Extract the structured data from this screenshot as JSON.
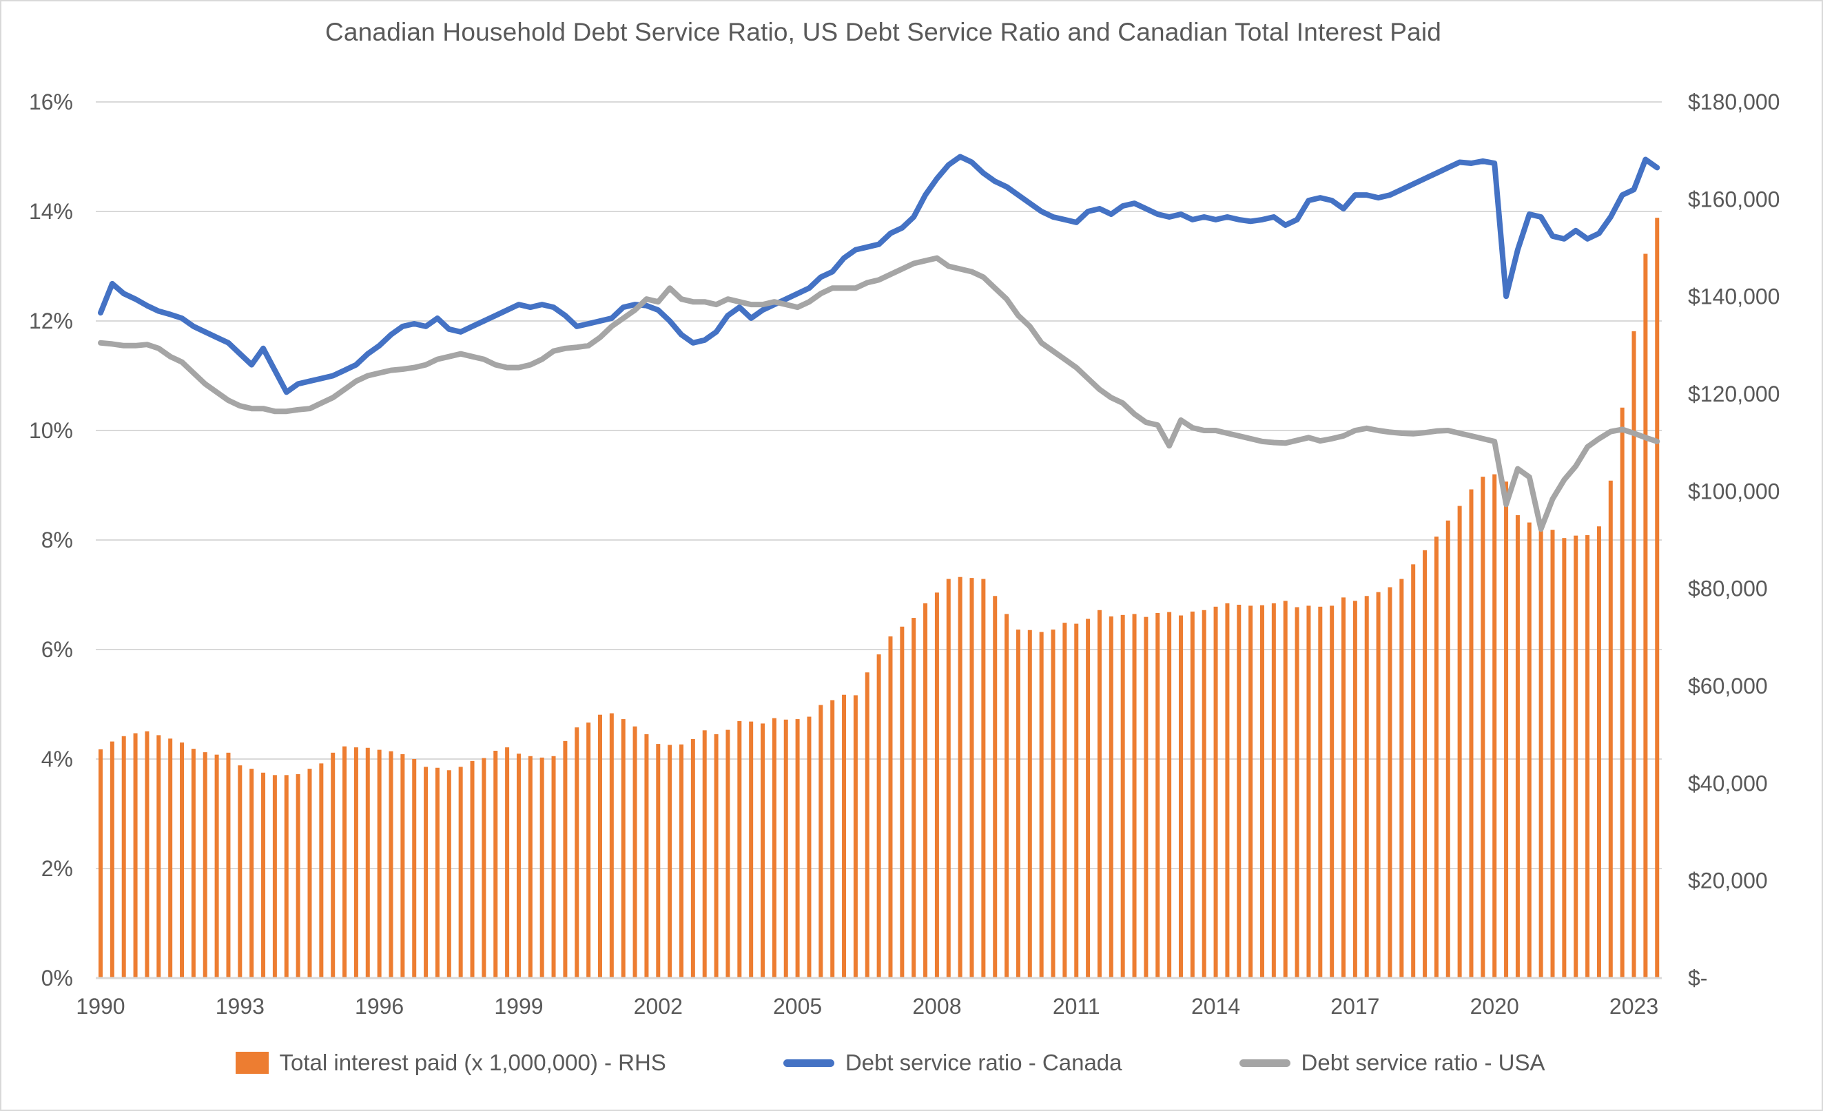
{
  "title": "Canadian Household Debt Service Ratio, US Debt Service Ratio and Canadian Total Interest Paid",
  "colors": {
    "bar": "#ED7D31",
    "canada": "#4472C4",
    "usa": "#A5A5A5",
    "text": "#595959",
    "gridline": "#D9D9D9"
  },
  "chart_data": {
    "type": "combo (bar + 2 lines)",
    "frequency": "quarterly",
    "x_start": "1990Q1",
    "x_end": "2023Q3",
    "x_tick_years": [
      1990,
      1993,
      1996,
      1999,
      2002,
      2005,
      2008,
      2011,
      2014,
      2017,
      2020,
      2023
    ],
    "y_left": {
      "min": 0,
      "max": 16,
      "tick_step": 2,
      "format": "percent",
      "tick_labels": [
        "0%",
        "2%",
        "4%",
        "6%",
        "8%",
        "10%",
        "12%",
        "14%",
        "16%"
      ]
    },
    "y_right": {
      "min": 0,
      "max": 180000,
      "tick_labels": [
        "$180,000",
        "$160,000",
        "$140,000",
        "$120,000",
        "$100,000",
        "$80,000",
        "$60,000",
        "$40,000",
        "$20,000",
        "$-"
      ]
    },
    "grid": "horizontal only",
    "legend_position": "bottom",
    "series": [
      {
        "name": "Total interest paid (x 1,000,000) - RHS",
        "type": "bar",
        "axis": "right",
        "color": "#ED7D31",
        "values": [
          47000,
          48600,
          49700,
          50300,
          50700,
          49900,
          49200,
          48400,
          47100,
          46400,
          45900,
          46300,
          43700,
          43000,
          42200,
          41700,
          41700,
          41900,
          43000,
          44100,
          46300,
          47600,
          47400,
          47300,
          46900,
          46600,
          46000,
          45000,
          43400,
          43200,
          42700,
          43400,
          44600,
          45200,
          46700,
          47400,
          46100,
          45600,
          45300,
          45600,
          48700,
          51500,
          52500,
          54100,
          54400,
          53200,
          51700,
          50100,
          48100,
          47900,
          48000,
          49100,
          50900,
          50100,
          51000,
          52800,
          52700,
          52300,
          53400,
          53100,
          53200,
          53700,
          56100,
          57100,
          58200,
          58100,
          62800,
          66500,
          70200,
          72200,
          74000,
          77000,
          79200,
          82000,
          82400,
          82200,
          82000,
          78500,
          74800,
          71600,
          71500,
          71100,
          71600,
          73000,
          72800,
          73800,
          75600,
          74300,
          74600,
          74800,
          74200,
          75000,
          75200,
          74500,
          75300,
          75600,
          76300,
          77000,
          76700,
          76500,
          76600,
          77000,
          77500,
          76200,
          76500,
          76300,
          76500,
          78200,
          77500,
          78500,
          79300,
          80300,
          82000,
          85000,
          87900,
          90700,
          94000,
          97000,
          100400,
          103000,
          103500,
          102000,
          95100,
          93600,
          92800,
          92100,
          90400,
          90900,
          91000,
          92800,
          102200,
          117200,
          132900,
          148800,
          156200
        ]
      },
      {
        "name": "Debt service ratio - Canada",
        "type": "line",
        "axis": "left",
        "color": "#4472C4",
        "values": [
          12.15,
          12.68,
          12.5,
          12.4,
          12.28,
          12.18,
          12.12,
          12.05,
          11.9,
          11.8,
          11.7,
          11.6,
          11.4,
          11.2,
          11.5,
          11.1,
          10.7,
          10.85,
          10.9,
          10.95,
          11.0,
          11.1,
          11.2,
          11.4,
          11.55,
          11.75,
          11.9,
          11.95,
          11.9,
          12.05,
          11.85,
          11.8,
          11.9,
          12.0,
          12.1,
          12.2,
          12.3,
          12.25,
          12.3,
          12.25,
          12.1,
          11.9,
          11.95,
          12.0,
          12.05,
          12.25,
          12.3,
          12.28,
          12.2,
          12.0,
          11.75,
          11.6,
          11.65,
          11.8,
          12.1,
          12.25,
          12.05,
          12.2,
          12.3,
          12.4,
          12.5,
          12.6,
          12.8,
          12.9,
          13.15,
          13.3,
          13.35,
          13.4,
          13.6,
          13.7,
          13.9,
          14.3,
          14.6,
          14.85,
          15.0,
          14.9,
          14.7,
          14.55,
          14.45,
          14.3,
          14.15,
          14.0,
          13.9,
          13.85,
          13.8,
          14.0,
          14.05,
          13.95,
          14.1,
          14.15,
          14.05,
          13.95,
          13.9,
          13.95,
          13.85,
          13.9,
          13.85,
          13.9,
          13.85,
          13.82,
          13.85,
          13.9,
          13.75,
          13.85,
          14.2,
          14.25,
          14.2,
          14.05,
          14.3,
          14.3,
          14.25,
          14.3,
          14.4,
          14.5,
          14.6,
          14.7,
          14.8,
          14.9,
          14.88,
          14.92,
          14.88,
          12.45,
          13.3,
          13.95,
          13.9,
          13.55,
          13.5,
          13.65,
          13.5,
          13.6,
          13.9,
          14.3,
          14.4,
          14.95,
          14.8
        ]
      },
      {
        "name": "Debt service ratio - USA",
        "type": "line",
        "axis": "left",
        "color": "#A5A5A5",
        "values": [
          11.6,
          11.58,
          11.55,
          11.55,
          11.57,
          11.5,
          11.35,
          11.25,
          11.05,
          10.85,
          10.7,
          10.55,
          10.45,
          10.4,
          10.4,
          10.35,
          10.35,
          10.38,
          10.4,
          10.5,
          10.6,
          10.75,
          10.9,
          11.0,
          11.05,
          11.1,
          11.12,
          11.15,
          11.2,
          11.3,
          11.35,
          11.4,
          11.35,
          11.3,
          11.2,
          11.15,
          11.15,
          11.2,
          11.3,
          11.45,
          11.5,
          11.52,
          11.55,
          11.7,
          11.9,
          12.05,
          12.2,
          12.4,
          12.35,
          12.6,
          12.4,
          12.35,
          12.35,
          12.3,
          12.4,
          12.35,
          12.3,
          12.3,
          12.35,
          12.3,
          12.25,
          12.35,
          12.5,
          12.6,
          12.6,
          12.6,
          12.7,
          12.75,
          12.85,
          12.95,
          13.05,
          13.1,
          13.15,
          13.0,
          12.95,
          12.9,
          12.8,
          12.6,
          12.4,
          12.1,
          11.9,
          11.6,
          11.45,
          11.3,
          11.15,
          10.95,
          10.75,
          10.6,
          10.5,
          10.3,
          10.15,
          10.1,
          9.72,
          10.19,
          10.05,
          10.0,
          10.0,
          9.95,
          9.9,
          9.85,
          9.8,
          9.78,
          9.77,
          9.82,
          9.87,
          9.81,
          9.85,
          9.9,
          10.0,
          10.04,
          10.0,
          9.97,
          9.95,
          9.94,
          9.96,
          9.99,
          10.0,
          9.95,
          9.9,
          9.85,
          9.8,
          8.65,
          9.3,
          9.15,
          8.2,
          8.75,
          9.1,
          9.35,
          9.7,
          9.85,
          9.98,
          10.02,
          9.95,
          9.87,
          9.8
        ]
      }
    ]
  }
}
